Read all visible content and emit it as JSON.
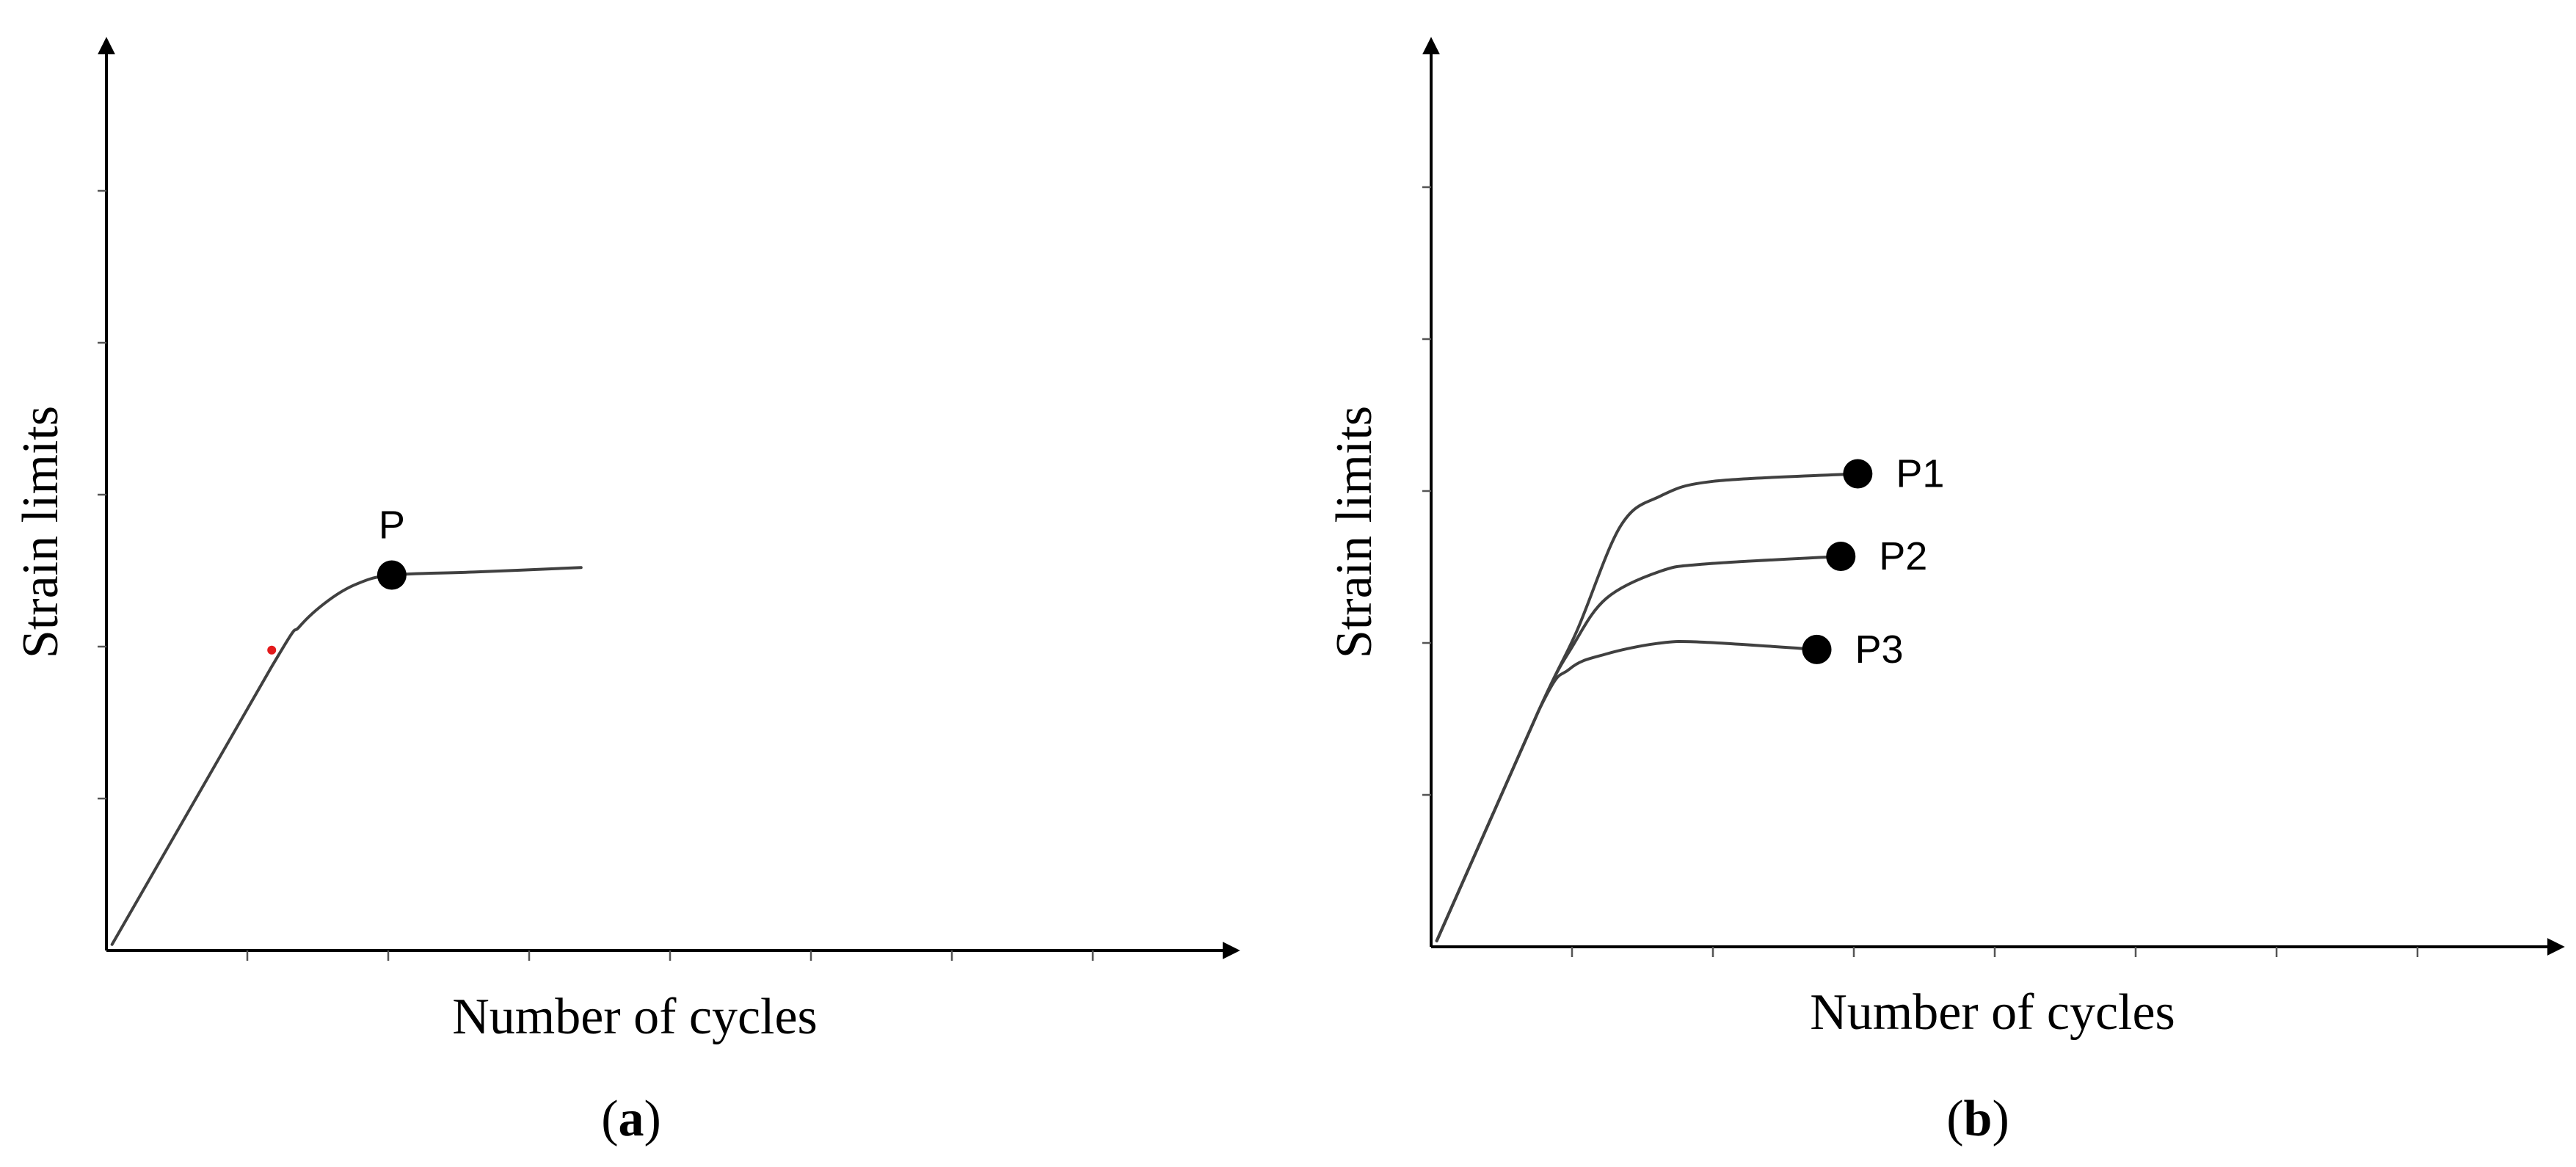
{
  "chart_data": [
    {
      "type": "line",
      "panel_label": "a",
      "xlabel": "Number of cycles",
      "ylabel": "Strain limits",
      "title": "",
      "grid": false,
      "xlim": [
        0,
        4
      ],
      "ylim": [
        0,
        4
      ],
      "series": [
        {
          "x": [
            0.04,
            1.17,
            1.37,
            1.57,
            1.77,
            2.02,
            2.6,
            3.36
          ],
          "values": [
            0.04,
            1.89,
            2.16,
            2.33,
            2.44,
            2.5,
            2.52,
            2.55
          ]
        }
      ],
      "points": [
        {
          "label": "P",
          "x": 2.02,
          "y": 2.5
        }
      ],
      "annotations": [
        {
          "type": "marker",
          "color": "#e31a1c",
          "x": 1.17,
          "y": 2.0
        }
      ]
    },
    {
      "type": "line",
      "panel_label": "b",
      "xlabel": "Number of cycles",
      "ylabel": "Strain limits",
      "title": "",
      "grid": false,
      "xlim": [
        0,
        4
      ],
      "ylim": [
        0,
        4
      ],
      "series": [
        {
          "x": [
            0.04,
            0.76,
            1.03,
            1.34,
            1.62,
            2.0,
            3.02
          ],
          "values": [
            0.04,
            1.57,
            2.1,
            2.8,
            3.0,
            3.1,
            3.15
          ]
        },
        {
          "x": [
            0.04,
            0.76,
            1.0,
            1.24,
            1.62,
            1.95,
            2.9
          ],
          "values": [
            0.04,
            1.57,
            2.0,
            2.32,
            2.5,
            2.55,
            2.6
          ]
        },
        {
          "x": [
            0.04,
            0.76,
            0.98,
            1.24,
            1.6,
            1.9,
            2.73
          ],
          "values": [
            0.04,
            1.57,
            1.85,
            1.95,
            2.02,
            2.03,
            1.98
          ]
        }
      ],
      "points": [
        {
          "label": "P1",
          "x": 3.02,
          "y": 3.15
        },
        {
          "label": "P2",
          "x": 2.9,
          "y": 2.6
        },
        {
          "label": "P3",
          "x": 2.73,
          "y": 1.98
        }
      ]
    }
  ],
  "colors": {
    "line": "#404040",
    "axis": "#000000",
    "marker": "#000000",
    "red_dot": "#e31a1c"
  }
}
